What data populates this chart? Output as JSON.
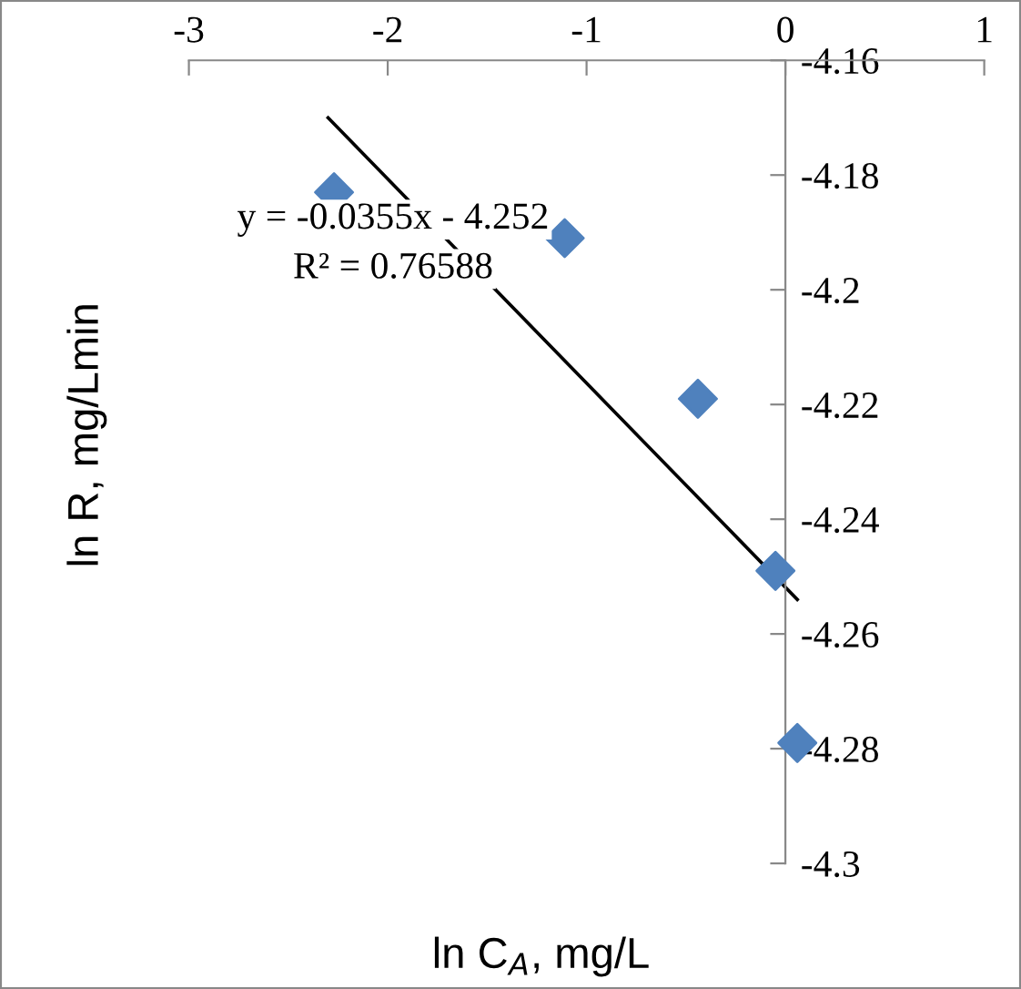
{
  "chart_data": {
    "type": "scatter",
    "xlabel": "ln C$_{A}$, mg/L",
    "ylabel": "ln R, mg/Lmin",
    "xlim": [
      -3,
      1
    ],
    "xticks": [
      -3,
      -2,
      -1,
      0,
      1
    ],
    "ylim": [
      -4.3,
      -4.16
    ],
    "yticks": [
      -4.3,
      -4.28,
      -4.26,
      -4.24,
      -4.22,
      -4.2,
      -4.18,
      -4.16
    ],
    "grid": false,
    "legend": false,
    "series": [
      {
        "color": "#4f81bd",
        "marker": "diamond",
        "x": [
          -2.27,
          -1.11,
          -0.44,
          -0.05,
          0.06
        ],
        "values": [
          -4.183,
          -4.191,
          -4.219,
          -4.249,
          -4.279
        ]
      },
      {
        "type": "line",
        "color": "#000000",
        "marker": "none",
        "line_style": "solid",
        "x": [
          -2.3,
          0.06
        ],
        "values": [
          -4.17,
          -4.254
        ]
      }
    ],
    "annotations": [
      "y = -0.0355x - 4.252",
      "R² = 0.76588"
    ]
  }
}
